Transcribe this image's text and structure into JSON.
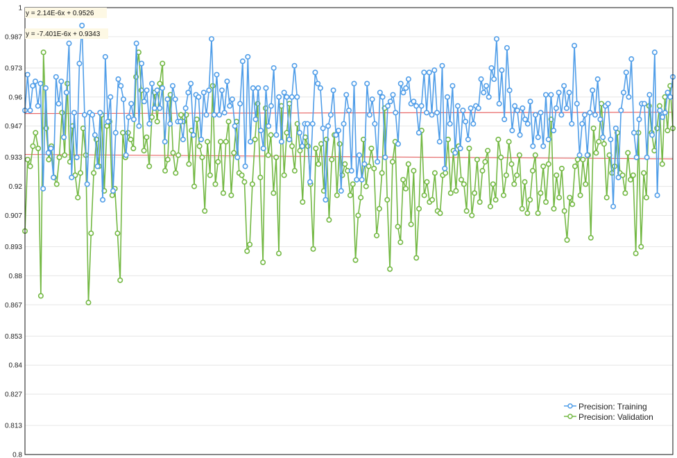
{
  "chart_data": {
    "type": "line",
    "title": "",
    "xlabel": "",
    "ylabel": "",
    "ylim": [
      0.8,
      1.0
    ],
    "y_ticks": [
      "0.8",
      "0.813",
      "0.827",
      "0.84",
      "0.853",
      "0.867",
      "0.88",
      "0.893",
      "0.907",
      "0.92",
      "0.933",
      "0.947",
      "0.96",
      "0.973",
      "0.987",
      "1"
    ],
    "grid": "horizontal",
    "legend_position": "bottom-right",
    "trendline_equations": [
      "y = 2.14E-6x + 0.9526",
      "y = -7.401E-6x + 0.9343"
    ],
    "series": [
      {
        "name": "Precision: Training",
        "color": "#4f9de8",
        "values": [
          0.954,
          0.97,
          0.954,
          0.965,
          0.967,
          0.956,
          0.966,
          0.919,
          0.964,
          0.935,
          0.937,
          0.924,
          0.969,
          0.957,
          0.967,
          0.942,
          0.962,
          0.984,
          0.924,
          0.953,
          0.933,
          0.975,
          0.992,
          0.952,
          0.921,
          0.953,
          0.952,
          0.943,
          0.929,
          0.953,
          0.914,
          0.978,
          0.949,
          0.96,
          0.918,
          0.944,
          0.968,
          0.965,
          0.959,
          0.934,
          0.951,
          0.957,
          0.95,
          0.984,
          0.947,
          0.975,
          0.958,
          0.963,
          0.948,
          0.966,
          0.955,
          0.963,
          0.955,
          0.964,
          0.94,
          0.959,
          0.948,
          0.965,
          0.959,
          0.949,
          0.949,
          0.941,
          0.955,
          0.962,
          0.966,
          0.943,
          0.961,
          0.96,
          0.941,
          0.962,
          0.952,
          0.963,
          0.986,
          0.952,
          0.97,
          0.952,
          0.963,
          0.953,
          0.967,
          0.956,
          0.959,
          0.947,
          0.933,
          0.957,
          0.976,
          0.929,
          0.978,
          0.94,
          0.964,
          0.95,
          0.964,
          0.945,
          0.937,
          0.964,
          0.947,
          0.956,
          0.973,
          0.943,
          0.96,
          0.94,
          0.962,
          0.96,
          0.941,
          0.96,
          0.974,
          0.96,
          0.944,
          0.938,
          0.948,
          0.948,
          0.922,
          0.948,
          0.971,
          0.966,
          0.964,
          0.946,
          0.914,
          0.947,
          0.952,
          0.963,
          0.943,
          0.945,
          0.918,
          0.948,
          0.961,
          0.954,
          0.927,
          0.966,
          0.923,
          0.934,
          0.923,
          0.93,
          0.966,
          0.952,
          0.959,
          0.948,
          0.931,
          0.962,
          0.96,
          0.933,
          0.956,
          0.958,
          0.961,
          0.953,
          0.939,
          0.966,
          0.962,
          0.964,
          0.968,
          0.957,
          0.958,
          0.956,
          0.944,
          0.956,
          0.971,
          0.953,
          0.971,
          0.952,
          0.972,
          0.953,
          0.94,
          0.974,
          0.928,
          0.96,
          0.948,
          0.965,
          0.935,
          0.956,
          0.937,
          0.954,
          0.949,
          0.941,
          0.955,
          0.948,
          0.956,
          0.955,
          0.968,
          0.962,
          0.965,
          0.96,
          0.973,
          0.968,
          0.986,
          0.957,
          0.972,
          0.95,
          0.982,
          0.963,
          0.945,
          0.956,
          0.954,
          0.943,
          0.955,
          0.95,
          0.948,
          0.958,
          0.938,
          0.952,
          0.942,
          0.953,
          0.938,
          0.961,
          0.941,
          0.961,
          0.945,
          0.955,
          0.962,
          0.952,
          0.965,
          0.955,
          0.962,
          0.948,
          0.983,
          0.957,
          0.934,
          0.948,
          0.952,
          0.934,
          0.953,
          0.963,
          0.952,
          0.968,
          0.95,
          0.942,
          0.956,
          0.957,
          0.941,
          0.911,
          0.946,
          0.924,
          0.954,
          0.962,
          0.971,
          0.96,
          0.977,
          0.944,
          0.933,
          0.95,
          0.957,
          0.957,
          0.933,
          0.961,
          0.943,
          0.98,
          0.916,
          0.954,
          0.951,
          0.953,
          0.962,
          0.96,
          0.969
        ]
      },
      {
        "name": "Precision: Validation",
        "color": "#73b843",
        "values": [
          0.9,
          0.932,
          0.929,
          0.938,
          0.944,
          0.937,
          0.871,
          0.98,
          0.946,
          0.932,
          0.938,
          0.924,
          0.921,
          0.933,
          0.953,
          0.934,
          0.966,
          0.931,
          0.947,
          0.925,
          0.915,
          0.926,
          0.946,
          0.934,
          0.868,
          0.899,
          0.926,
          0.941,
          0.929,
          0.952,
          0.918,
          0.947,
          0.949,
          0.916,
          0.919,
          0.899,
          0.878,
          0.944,
          0.933,
          0.944,
          0.941,
          0.937,
          0.969,
          0.98,
          0.963,
          0.936,
          0.942,
          0.929,
          0.951,
          0.962,
          0.949,
          0.966,
          0.975,
          0.927,
          0.932,
          0.961,
          0.935,
          0.926,
          0.934,
          0.952,
          0.949,
          0.952,
          0.93,
          0.945,
          0.92,
          0.95,
          0.938,
          0.933,
          0.909,
          0.94,
          0.925,
          0.965,
          0.921,
          0.931,
          0.94,
          0.917,
          0.94,
          0.949,
          0.916,
          0.935,
          0.949,
          0.926,
          0.925,
          0.922,
          0.891,
          0.894,
          0.921,
          0.941,
          0.957,
          0.924,
          0.886,
          0.955,
          0.934,
          0.943,
          0.917,
          0.933,
          0.89,
          0.956,
          0.925,
          0.944,
          0.957,
          0.938,
          0.927,
          0.948,
          0.936,
          0.913,
          0.942,
          0.938,
          0.921,
          0.892,
          0.937,
          0.93,
          0.939,
          0.918,
          0.941,
          0.905,
          0.932,
          0.943,
          0.916,
          0.939,
          0.925,
          0.93,
          0.927,
          0.916,
          0.921,
          0.887,
          0.907,
          0.915,
          0.941,
          0.92,
          0.929,
          0.937,
          0.928,
          0.898,
          0.91,
          0.926,
          0.955,
          0.914,
          0.883,
          0.931,
          0.94,
          0.902,
          0.895,
          0.923,
          0.919,
          0.93,
          0.903,
          0.927,
          0.888,
          0.91,
          0.945,
          0.916,
          0.922,
          0.913,
          0.914,
          0.926,
          0.909,
          0.908,
          0.925,
          0.926,
          0.941,
          0.917,
          0.936,
          0.918,
          0.938,
          0.923,
          0.921,
          0.909,
          0.937,
          0.907,
          0.917,
          0.932,
          0.913,
          0.927,
          0.931,
          0.936,
          0.911,
          0.921,
          0.914,
          0.941,
          0.933,
          0.916,
          0.925,
          0.94,
          0.93,
          0.921,
          0.925,
          0.934,
          0.91,
          0.922,
          0.908,
          0.914,
          0.927,
          0.934,
          0.908,
          0.917,
          0.929,
          0.913,
          0.93,
          0.95,
          0.91,
          0.925,
          0.915,
          0.928,
          0.909,
          0.896,
          0.915,
          0.912,
          0.929,
          0.932,
          0.916,
          0.932,
          0.921,
          0.934,
          0.897,
          0.946,
          0.935,
          0.94,
          0.957,
          0.939,
          0.915,
          0.934,
          0.926,
          0.929,
          0.944,
          0.926,
          0.925,
          0.917,
          0.935,
          0.923,
          0.925,
          0.89,
          0.944,
          0.893,
          0.926,
          0.915,
          0.956,
          0.944,
          0.936,
          0.946,
          0.956,
          0.93,
          0.96,
          0.945,
          0.965,
          0.946
        ]
      }
    ],
    "trendlines": [
      {
        "color": "#e86868",
        "start": 0.9526,
        "end": 0.9532
      },
      {
        "color": "#e86868",
        "start": 0.9343,
        "end": 0.9323
      }
    ]
  }
}
